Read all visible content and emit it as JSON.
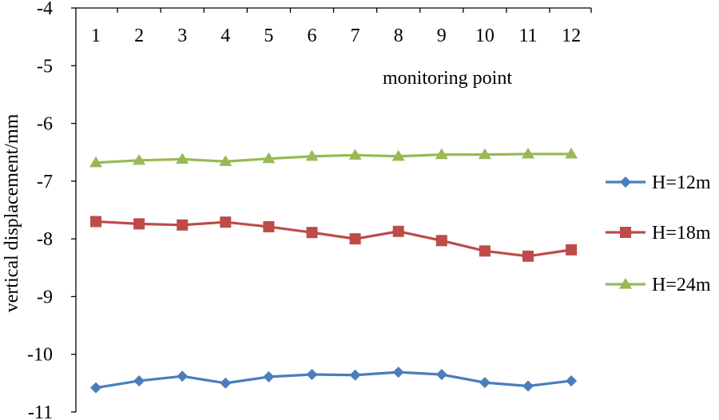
{
  "chart_data": {
    "type": "line",
    "title": "",
    "xlabel": "monitoring point",
    "ylabel": "vertical displacement/mm",
    "x_position": "top",
    "x": [
      1,
      2,
      3,
      4,
      5,
      6,
      7,
      8,
      9,
      10,
      11,
      12
    ],
    "x_tick_labels": [
      "1",
      "2",
      "3",
      "4",
      "5",
      "6",
      "7",
      "8",
      "9",
      "10",
      "11",
      "12"
    ],
    "ylim": [
      -11,
      -4
    ],
    "y_ticks": [
      -4,
      -5,
      -6,
      -7,
      -8,
      -9,
      -10,
      -11
    ],
    "y_tick_labels": [
      "-4",
      "-5",
      "-6",
      "-7",
      "-8",
      "-9",
      "-10",
      "-11"
    ],
    "grid": false,
    "legend_position": "right",
    "series": [
      {
        "name": "H=12m",
        "color": "#4a7ebb",
        "marker": "diamond",
        "values": [
          -10.58,
          -10.46,
          -10.38,
          -10.5,
          -10.39,
          -10.35,
          -10.36,
          -10.31,
          -10.35,
          -10.49,
          -10.55,
          -10.46
        ]
      },
      {
        "name": "H=18m",
        "color": "#be4b48",
        "marker": "square",
        "values": [
          -7.7,
          -7.74,
          -7.76,
          -7.71,
          -7.79,
          -7.89,
          -8.0,
          -7.87,
          -8.03,
          -8.21,
          -8.3,
          -8.19
        ]
      },
      {
        "name": "H=24m",
        "color": "#98b954",
        "marker": "triangle",
        "values": [
          -6.68,
          -6.64,
          -6.62,
          -6.66,
          -6.61,
          -6.57,
          -6.55,
          -6.57,
          -6.54,
          -6.54,
          -6.53,
          -6.53
        ]
      }
    ]
  }
}
